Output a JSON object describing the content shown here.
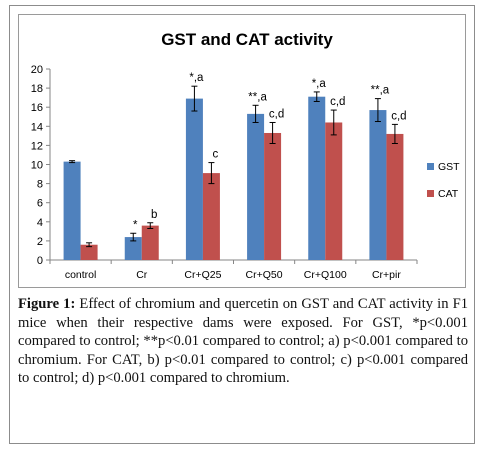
{
  "chart_data": {
    "type": "bar",
    "title": "GST and CAT activity",
    "categories": [
      "control",
      "Cr",
      "Cr+Q25",
      "Cr+Q50",
      "Cr+Q100",
      "Cr+pir"
    ],
    "ylim": [
      0,
      20
    ],
    "yticks": [
      0,
      2,
      4,
      6,
      8,
      10,
      12,
      14,
      16,
      18,
      20
    ],
    "grid": false,
    "legend_position": "right",
    "series": [
      {
        "name": "GST",
        "color": "#4f81bd",
        "values": [
          10.3,
          2.4,
          16.9,
          15.3,
          17.1,
          15.7
        ],
        "errors": [
          0.1,
          0.4,
          1.3,
          0.9,
          0.5,
          1.2
        ],
        "labels": [
          "",
          "*",
          "*,a",
          "**,a",
          "*,a",
          "**,a"
        ]
      },
      {
        "name": "CAT",
        "color": "#c0504d",
        "values": [
          1.6,
          3.6,
          9.1,
          13.3,
          14.4,
          13.2
        ],
        "errors": [
          0.2,
          0.3,
          1.1,
          1.1,
          1.3,
          1.0
        ],
        "labels": [
          "",
          "b",
          "c",
          "c,d",
          "c,d",
          "c,d"
        ]
      }
    ]
  },
  "caption": {
    "label": "Figure 1:",
    "text": "Effect of chromium and quercetin on GST and CAT activity in F1 mice when their respective dams were exposed. For GST, *p<0.001 compared to control; **p<0.01 compared to control; a) p<0.001 compared to chromium. For CAT, b) p<0.01 compared to control; c) p<0.001 compared to control; d) p<0.001 compared to chromium."
  }
}
